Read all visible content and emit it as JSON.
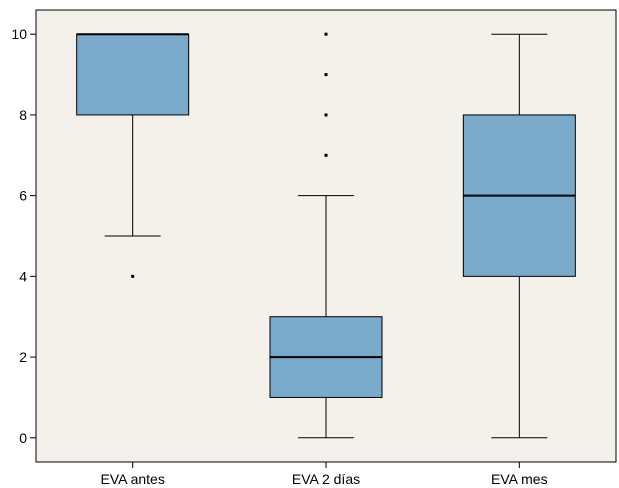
{
  "chart_data": {
    "type": "boxplot",
    "title": "",
    "xlabel": "",
    "ylabel": "",
    "ylim": [
      -0.6,
      10.6
    ],
    "yticks": [
      0,
      2,
      4,
      6,
      8,
      10
    ],
    "ytick_labels": [
      "0",
      "2",
      "4",
      "6",
      "8",
      "10"
    ],
    "grid": false,
    "colors": {
      "box_fill": "#7aaacb",
      "plot_bg": "#f4f1eb",
      "line": "#000000"
    },
    "categories": [
      "EVA antes",
      "EVA 2 días",
      "EVA mes"
    ],
    "boxes": [
      {
        "name": "EVA antes",
        "whisker_low": 5,
        "q1": 8,
        "median": 10,
        "q3": 10,
        "whisker_high": 10,
        "outliers": [
          4
        ]
      },
      {
        "name": "EVA 2 días",
        "whisker_low": 0,
        "q1": 1,
        "median": 2,
        "q3": 3,
        "whisker_high": 6,
        "outliers": [
          7,
          8,
          9,
          10
        ]
      },
      {
        "name": "EVA mes",
        "whisker_low": 0,
        "q1": 4,
        "median": 6,
        "q3": 8,
        "whisker_high": 10,
        "outliers": []
      }
    ]
  }
}
